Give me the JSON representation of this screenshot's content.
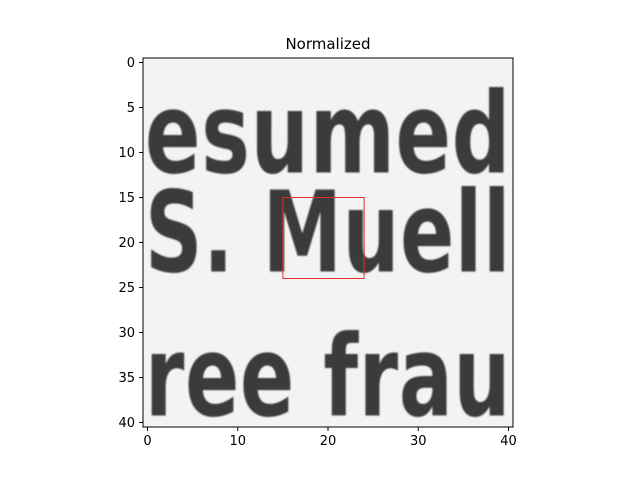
{
  "chart_data": {
    "type": "heatmap",
    "title": "Normalized",
    "colormap": "gray",
    "image_extent": {
      "x": [
        -0.5,
        40.5
      ],
      "y": [
        40.5,
        -0.5
      ]
    },
    "x_ticks": [
      0,
      10,
      20,
      30,
      40
    ],
    "y_ticks": [
      0,
      5,
      10,
      15,
      20,
      25,
      30,
      35,
      40
    ],
    "image_text_lines": [
      {
        "text": "esumed",
        "row_center": 9
      },
      {
        "text": "S.  Muell",
        "row_center": 20
      },
      {
        "text": "ree  frau",
        "row_center": 36
      }
    ],
    "highlight_box": {
      "x0": 15,
      "y0": 15,
      "x1": 24,
      "y1": 24,
      "color": "#e03030"
    },
    "grid": false,
    "legend": "none"
  }
}
